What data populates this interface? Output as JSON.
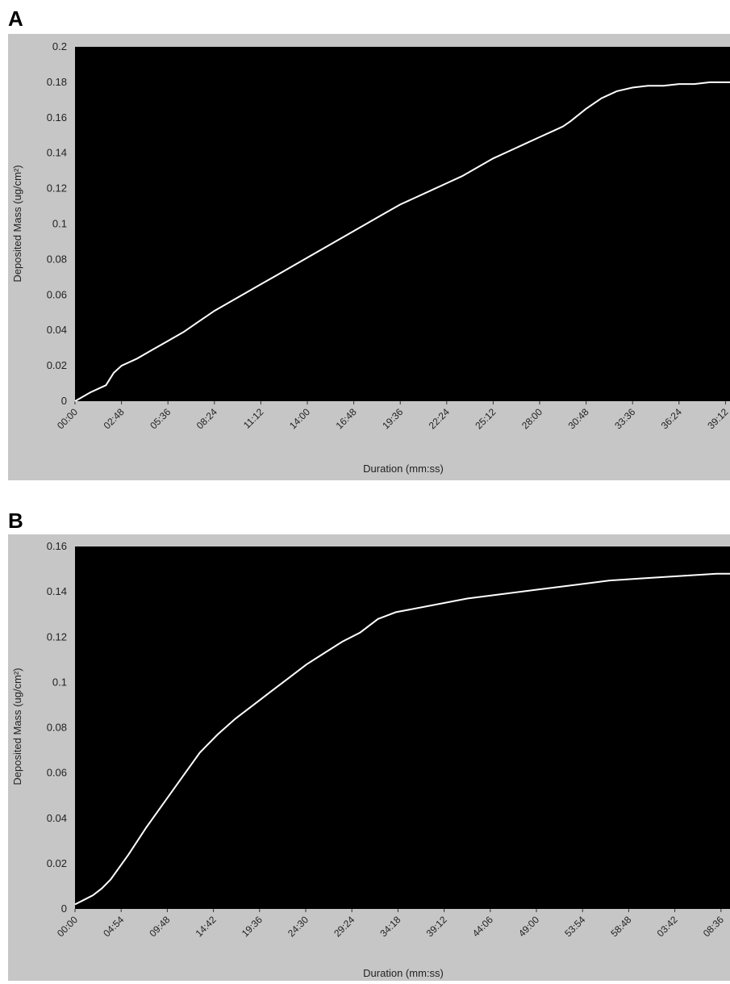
{
  "panels": [
    {
      "letter": "A"
    },
    {
      "letter": "B"
    }
  ],
  "colors": {
    "frame": "#c6c6c6",
    "plot_background": "#000000",
    "line": "#ffffff",
    "text": "#222222"
  },
  "chart_data": [
    {
      "type": "line",
      "panel": "A",
      "xlabel": "Duration (mm:ss)",
      "ylabel": "Deposited Mass (ug/cm²)",
      "ylim": [
        0,
        0.2
      ],
      "yticks": [
        "0",
        "0.02",
        "0.04",
        "0.06",
        "0.08",
        "0.1",
        "0.12",
        "0.14",
        "0.16",
        "0.18",
        "0.2"
      ],
      "xticks": [
        "00:00",
        "02:48",
        "05:36",
        "08:24",
        "11:12",
        "14:00",
        "16:48",
        "19:36",
        "22:24",
        "25:12",
        "28:00",
        "30:48",
        "33:36",
        "36:24",
        "39:12"
      ],
      "x_unit": "minutes",
      "x_range": [
        0,
        42.3
      ],
      "grid": false,
      "series": [
        {
          "x": [
            0,
            1,
            2,
            2.5,
            3,
            4,
            5,
            6,
            7,
            8,
            9,
            10,
            11,
            12,
            13,
            14,
            15,
            16,
            17,
            18,
            19,
            20,
            21,
            22,
            23,
            24,
            25,
            26,
            27,
            28,
            29,
            30,
            31,
            31.5,
            32,
            33,
            34,
            35,
            36,
            37,
            38,
            39,
            40,
            41,
            42.3
          ],
          "y": [
            0.0,
            0.005,
            0.009,
            0.016,
            0.02,
            0.024,
            0.029,
            0.034,
            0.039,
            0.045,
            0.051,
            0.056,
            0.061,
            0.066,
            0.071,
            0.076,
            0.081,
            0.086,
            0.091,
            0.096,
            0.101,
            0.106,
            0.111,
            0.115,
            0.119,
            0.123,
            0.127,
            0.132,
            0.137,
            0.141,
            0.145,
            0.149,
            0.153,
            0.155,
            0.158,
            0.165,
            0.171,
            0.175,
            0.177,
            0.178,
            0.178,
            0.179,
            0.179,
            0.18,
            0.18
          ]
        }
      ]
    },
    {
      "type": "line",
      "panel": "B",
      "xlabel": "Duration (mm:ss)",
      "ylabel": "Deposited Mass (ug/cm²)",
      "ylim": [
        0,
        0.16
      ],
      "yticks": [
        "0",
        "0.02",
        "0.04",
        "0.06",
        "0.08",
        "0.1",
        "0.12",
        "0.14",
        "0.16"
      ],
      "xticks": [
        "00:00",
        "04:54",
        "09:48",
        "14:42",
        "19:36",
        "24:30",
        "29:24",
        "34:18",
        "39:12",
        "44:06",
        "49:00",
        "53:54",
        "58:48",
        "03:42",
        "08:36"
      ],
      "x_unit": "minutes",
      "x_range": [
        0,
        73.5
      ],
      "grid": false,
      "series": [
        {
          "x": [
            0,
            1,
            2,
            3,
            4,
            6,
            8,
            10,
            12,
            14,
            16,
            18,
            20,
            22,
            24,
            26,
            28,
            30,
            32,
            34,
            36,
            40,
            44,
            48,
            52,
            56,
            60,
            64,
            68,
            72,
            73.5
          ],
          "y": [
            0.002,
            0.004,
            0.006,
            0.009,
            0.013,
            0.024,
            0.036,
            0.047,
            0.058,
            0.069,
            0.077,
            0.084,
            0.09,
            0.096,
            0.102,
            0.108,
            0.113,
            0.118,
            0.122,
            0.128,
            0.131,
            0.134,
            0.137,
            0.139,
            0.141,
            0.143,
            0.145,
            0.146,
            0.147,
            0.148,
            0.148
          ]
        }
      ]
    }
  ]
}
